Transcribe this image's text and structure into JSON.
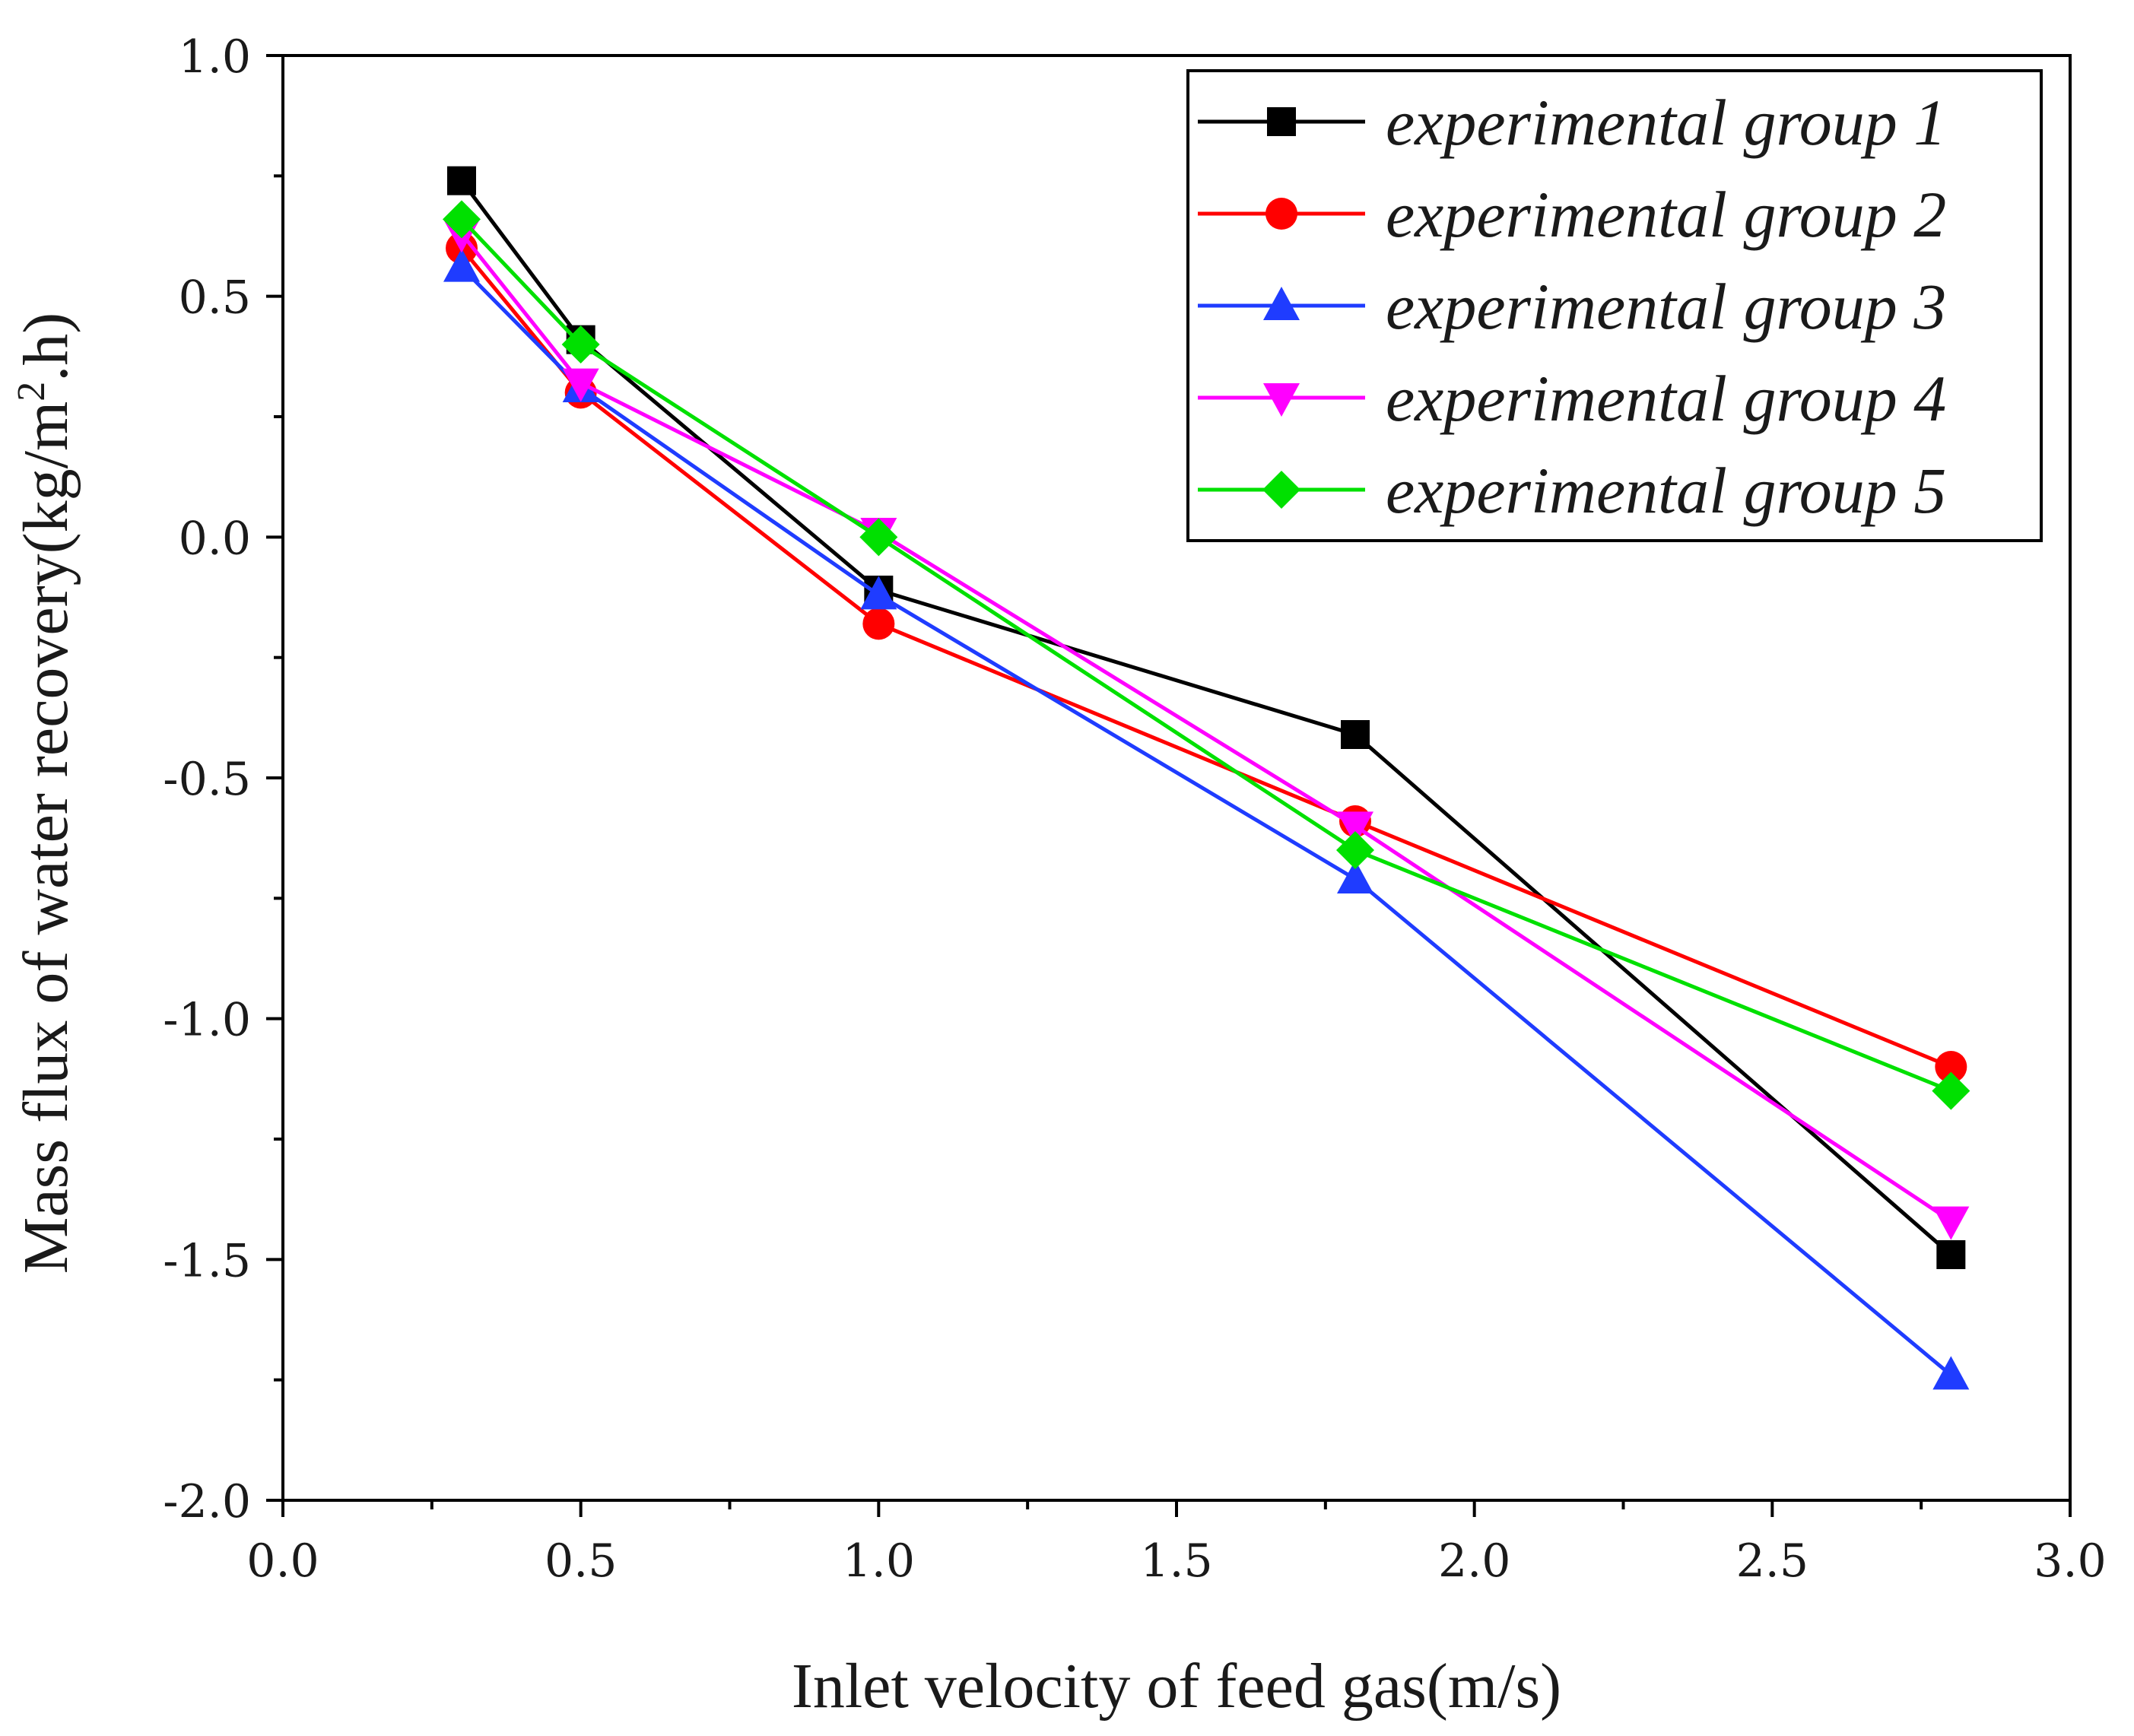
{
  "chart_data": {
    "type": "line",
    "x": [
      0.3,
      0.5,
      1.0,
      1.8,
      2.8
    ],
    "series": [
      {
        "name": "experimental group 1",
        "color": "#000000",
        "marker": "square",
        "values": [
          0.74,
          0.41,
          -0.11,
          -0.41,
          -1.49
        ]
      },
      {
        "name": "experimental group 2",
        "color": "#ff0000",
        "marker": "circle",
        "values": [
          0.6,
          0.3,
          -0.18,
          -0.59,
          -1.1
        ]
      },
      {
        "name": "experimental group 3",
        "color": "#1f3cff",
        "marker": "triangle-up",
        "values": [
          0.56,
          0.31,
          -0.12,
          -0.71,
          -1.74
        ]
      },
      {
        "name": "experimental group 4",
        "color": "#ff00ff",
        "marker": "triangle-down",
        "values": [
          0.63,
          0.32,
          0.01,
          -0.6,
          -1.42
        ]
      },
      {
        "name": "experimental group 5",
        "color": "#00e000",
        "marker": "diamond",
        "values": [
          0.66,
          0.4,
          0.0,
          -0.65,
          -1.15
        ]
      }
    ],
    "xlabel": "Inlet velocity of feed gas(m/s)",
    "ylabel_main": "Mass flux of water recovery(kg/m",
    "ylabel_sup": "2",
    "ylabel_tail": ".h)",
    "xlim": [
      0.0,
      3.0
    ],
    "ylim": [
      -2.0,
      1.0
    ],
    "xticks": [
      0.0,
      0.5,
      1.0,
      1.5,
      2.0,
      2.5,
      3.0
    ],
    "xtick_labels": [
      "0.0",
      "0.5",
      "1.0",
      "1.5",
      "2.0",
      "2.5",
      "3.0"
    ],
    "yticks": [
      -2.0,
      -1.5,
      -1.0,
      -0.5,
      0.0,
      0.5,
      1.0
    ],
    "ytick_labels": [
      "-2.0",
      "-1.5",
      "-1.0",
      "-0.5",
      "0.0",
      "0.5",
      "1.0"
    ],
    "grid": false,
    "legend_position": "top-right"
  }
}
